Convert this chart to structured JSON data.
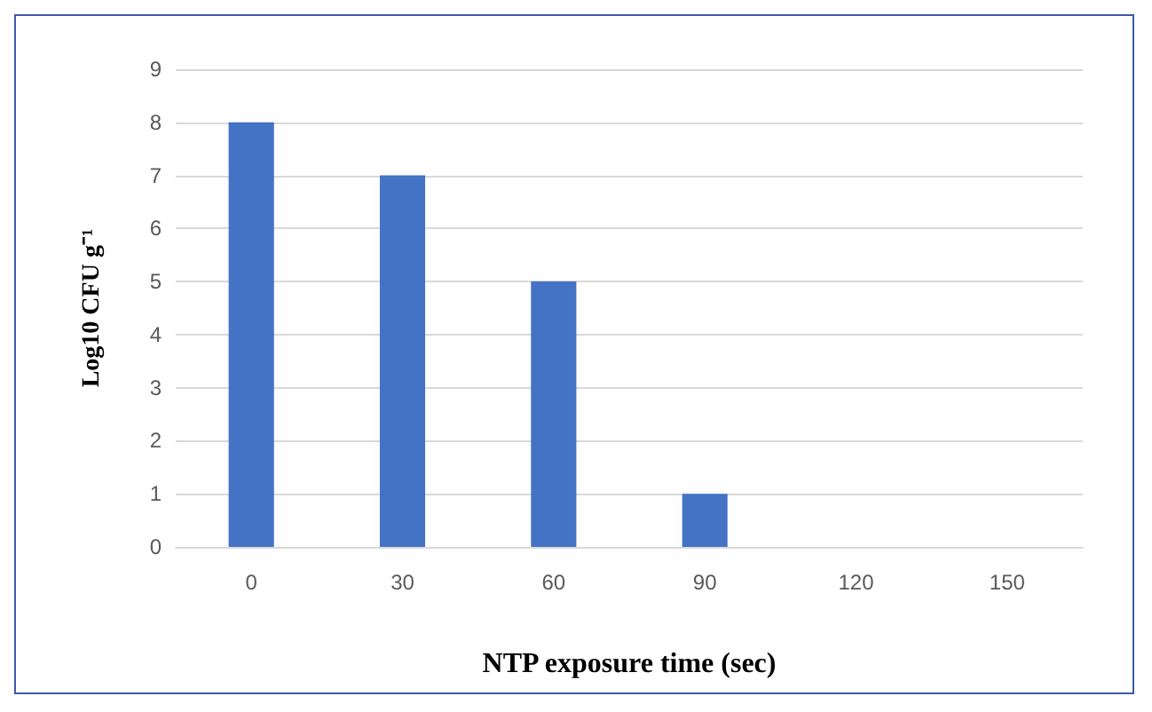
{
  "chart_data": {
    "type": "bar",
    "xlabel": "NTP exposure time (sec)",
    "ylabel": "Log10 CFU g⁻¹",
    "categories": [
      "0",
      "30",
      "60",
      "90",
      "120",
      "150"
    ],
    "values": [
      8,
      7,
      5,
      1,
      0,
      0
    ],
    "color": "#4472c4",
    "ylim": [
      0,
      9
    ],
    "yticks": [
      0,
      1,
      2,
      3,
      4,
      5,
      6,
      7,
      8,
      9
    ],
    "grid": "y"
  }
}
